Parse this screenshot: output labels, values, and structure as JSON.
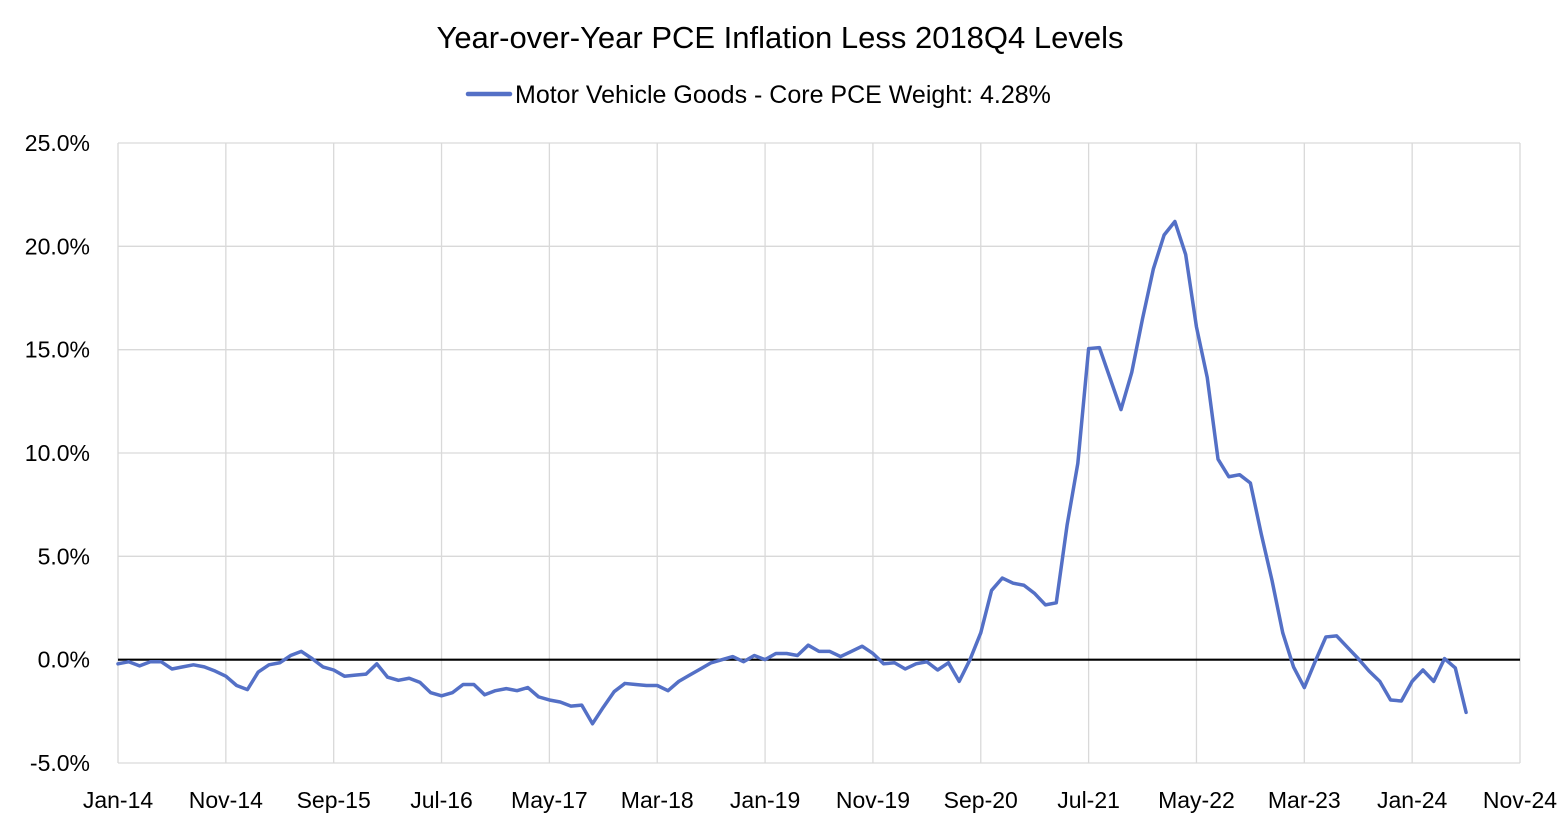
{
  "chart_data": {
    "type": "line",
    "title": "Year-over-Year PCE Inflation Less 2018Q4 Levels",
    "legend": {
      "placement": "top-center"
    },
    "series": [
      {
        "name": "Motor Vehicle Goods - Core PCE Weight: 4.28%",
        "color": "#5470c6",
        "start": "Jan-14",
        "frequency": "monthly",
        "values": [
          -0.2,
          -0.1,
          -0.3,
          -0.1,
          -0.1,
          -0.45,
          -0.35,
          -0.25,
          -0.35,
          -0.55,
          -0.8,
          -1.25,
          -1.45,
          -0.6,
          -0.25,
          -0.15,
          0.2,
          0.4,
          0.05,
          -0.35,
          -0.5,
          -0.8,
          -0.75,
          -0.7,
          -0.2,
          -0.85,
          -1.0,
          -0.9,
          -1.1,
          -1.6,
          -1.75,
          -1.6,
          -1.2,
          -1.2,
          -1.7,
          -1.5,
          -1.4,
          -1.5,
          -1.35,
          -1.8,
          -1.95,
          -2.05,
          -2.25,
          -2.2,
          -3.1,
          -2.3,
          -1.55,
          -1.15,
          -1.2,
          -1.25,
          -1.25,
          -1.5,
          -1.05,
          -0.75,
          -0.45,
          -0.15,
          0.0,
          0.15,
          -0.1,
          0.2,
          0.0,
          0.3,
          0.3,
          0.2,
          0.7,
          0.4,
          0.4,
          0.15,
          0.4,
          0.65,
          0.3,
          -0.2,
          -0.15,
          -0.45,
          -0.2,
          -0.1,
          -0.5,
          -0.15,
          -1.05,
          0.0,
          1.3,
          3.35,
          3.95,
          3.7,
          3.6,
          3.2,
          2.65,
          2.75,
          6.5,
          9.5,
          15.05,
          15.1,
          13.6,
          12.1,
          13.9,
          16.5,
          18.9,
          20.55,
          21.2,
          19.6,
          16.1,
          13.65,
          9.7,
          8.85,
          8.95,
          8.55,
          6.1,
          3.85,
          1.3,
          -0.35,
          -1.35,
          -0.1,
          1.1,
          1.15,
          0.6,
          0.05,
          -0.55,
          -1.05,
          -1.95,
          -2.0,
          -1.05,
          -0.5,
          -1.05,
          0.05,
          -0.4,
          -2.55
        ]
      }
    ],
    "y_axis": {
      "min": -5,
      "max": 25,
      "ticks": [
        -5,
        0,
        5,
        10,
        15,
        20,
        25
      ],
      "tick_labels": [
        "-5.0%",
        "0.0%",
        "5.0%",
        "10.0%",
        "15.0%",
        "20.0%",
        "25.0%"
      ]
    },
    "x_axis": {
      "tick_labels": [
        "Jan-14",
        "Nov-14",
        "Sep-15",
        "Jul-16",
        "May-17",
        "Mar-18",
        "Jan-19",
        "Nov-19",
        "Sep-20",
        "Jul-21",
        "May-22",
        "Mar-23",
        "Jan-24",
        "Nov-24"
      ],
      "tick_step_months": 10,
      "range_months": 130
    },
    "grid": true
  }
}
